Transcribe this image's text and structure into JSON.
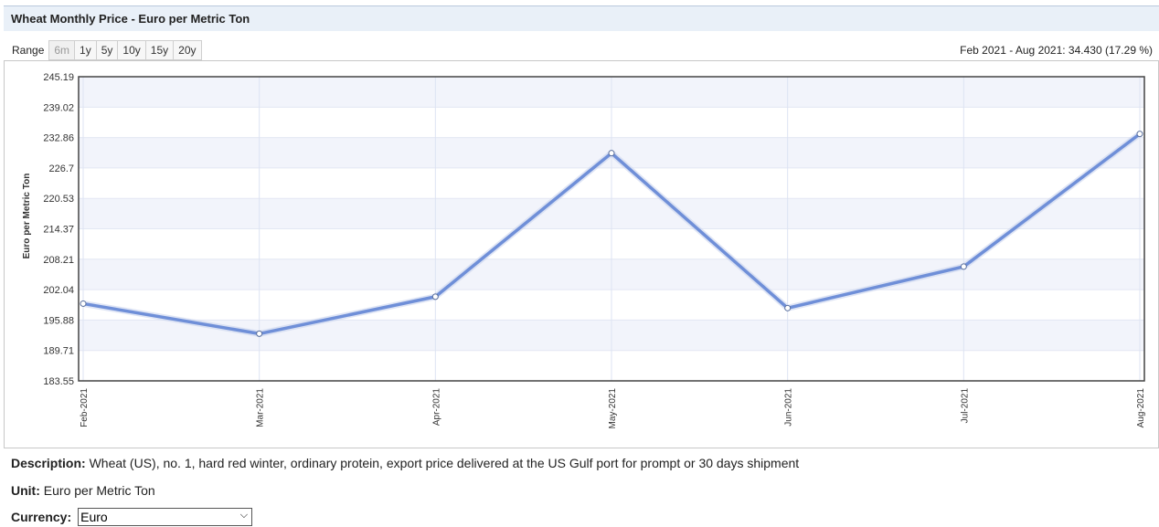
{
  "header": {
    "title": "Wheat Monthly Price - Euro per Metric Ton"
  },
  "range": {
    "label": "Range",
    "options": [
      "6m",
      "1y",
      "5y",
      "10y",
      "15y",
      "20y"
    ],
    "active": "6m"
  },
  "summary": "Feb 2021 - Aug 2021: 34.430 (17.29 %)",
  "chart_data": {
    "type": "line",
    "title": "",
    "xlabel": "",
    "ylabel": "Euro per Metric Ton",
    "x": [
      "Feb-2021",
      "Mar-2021",
      "Apr-2021",
      "May-2021",
      "Jun-2021",
      "Jul-2021",
      "Aug-2021"
    ],
    "series": [
      {
        "name": "",
        "values": [
          199.2,
          193.1,
          200.6,
          229.7,
          198.3,
          206.7,
          233.6
        ]
      }
    ],
    "y_ticks": [
      "245.19",
      "239.02",
      "232.86",
      "226.7",
      "220.53",
      "214.37",
      "208.21",
      "202.04",
      "195.88",
      "189.71",
      "183.55"
    ],
    "ylim": [
      183.55,
      245.19
    ],
    "grid": true,
    "line_color": "#6f8fd8",
    "band_color": "#f2f4fb"
  },
  "description": {
    "label": "Description:",
    "text": "Wheat (US), no. 1, hard red winter, ordinary protein, export price delivered at the US Gulf port for prompt or 30 days shipment"
  },
  "unit": {
    "label": "Unit:",
    "text": "Euro per Metric Ton"
  },
  "currency": {
    "label": "Currency:",
    "selected": "Euro"
  }
}
